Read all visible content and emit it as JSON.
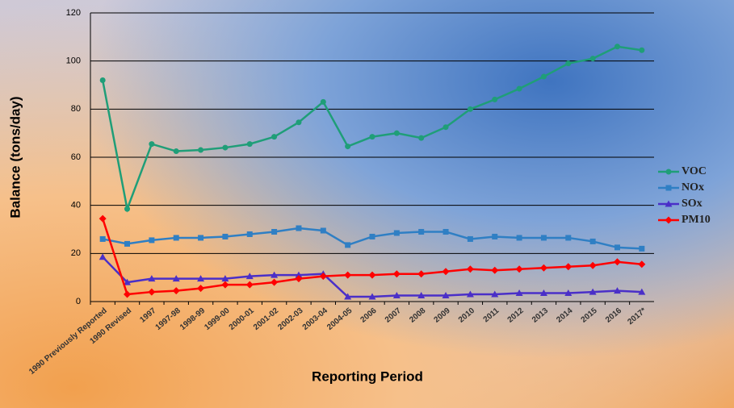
{
  "chart_data": {
    "type": "line",
    "x_label": "Reporting Period",
    "y_label": "Balance (tons/day)",
    "categories": [
      "1990 Previously Reported",
      "1990 Revised",
      "1997",
      "1997-98",
      "1998-99",
      "1999-00",
      "2000-01",
      "2001-02",
      "2002-03",
      "2003-04",
      "2004-05",
      "2006",
      "2007",
      "2008",
      "2009",
      "2010",
      "2011",
      "2012",
      "2013",
      "2014",
      "2015",
      "2016",
      "2017*"
    ],
    "series": [
      {
        "name": "VOC",
        "color": "#1f9e78",
        "marker": "circle",
        "values": [
          92,
          38.5,
          65.5,
          62.5,
          63,
          64,
          65.5,
          68.5,
          74.5,
          83,
          64.5,
          68.5,
          70,
          68,
          72.5,
          80,
          84,
          88.5,
          93.5,
          99,
          101,
          106,
          104.5
        ]
      },
      {
        "name": "NOx",
        "color": "#2f7fc4",
        "marker": "square",
        "values": [
          26,
          24,
          25.5,
          26.5,
          26.5,
          27,
          28,
          29,
          30.5,
          29.5,
          23.5,
          27,
          28.5,
          29,
          29,
          26,
          27,
          26.5,
          26.5,
          26.5,
          25,
          22.5,
          22
        ]
      },
      {
        "name": "SOx",
        "color": "#4a2fc8",
        "marker": "triangle",
        "values": [
          18.5,
          8,
          9.5,
          9.5,
          9.5,
          9.5,
          10.5,
          11,
          11,
          11.5,
          2,
          2,
          2.5,
          2.5,
          2.5,
          3,
          3,
          3.5,
          3.5,
          3.5,
          4,
          4.5,
          4
        ]
      },
      {
        "name": "PM10",
        "color": "#ff0000",
        "marker": "diamond",
        "values": [
          34.5,
          3,
          4,
          4.5,
          5.5,
          7,
          7,
          8,
          9.5,
          10.5,
          11,
          11,
          11.5,
          11.5,
          12.5,
          13.5,
          13,
          13.5,
          14,
          14.5,
          15,
          16.5,
          15.5
        ]
      }
    ],
    "ylim": [
      0,
      120
    ],
    "yticks": [
      0,
      20,
      40,
      60,
      80,
      100,
      120
    ],
    "grid": true,
    "legend": "right"
  }
}
